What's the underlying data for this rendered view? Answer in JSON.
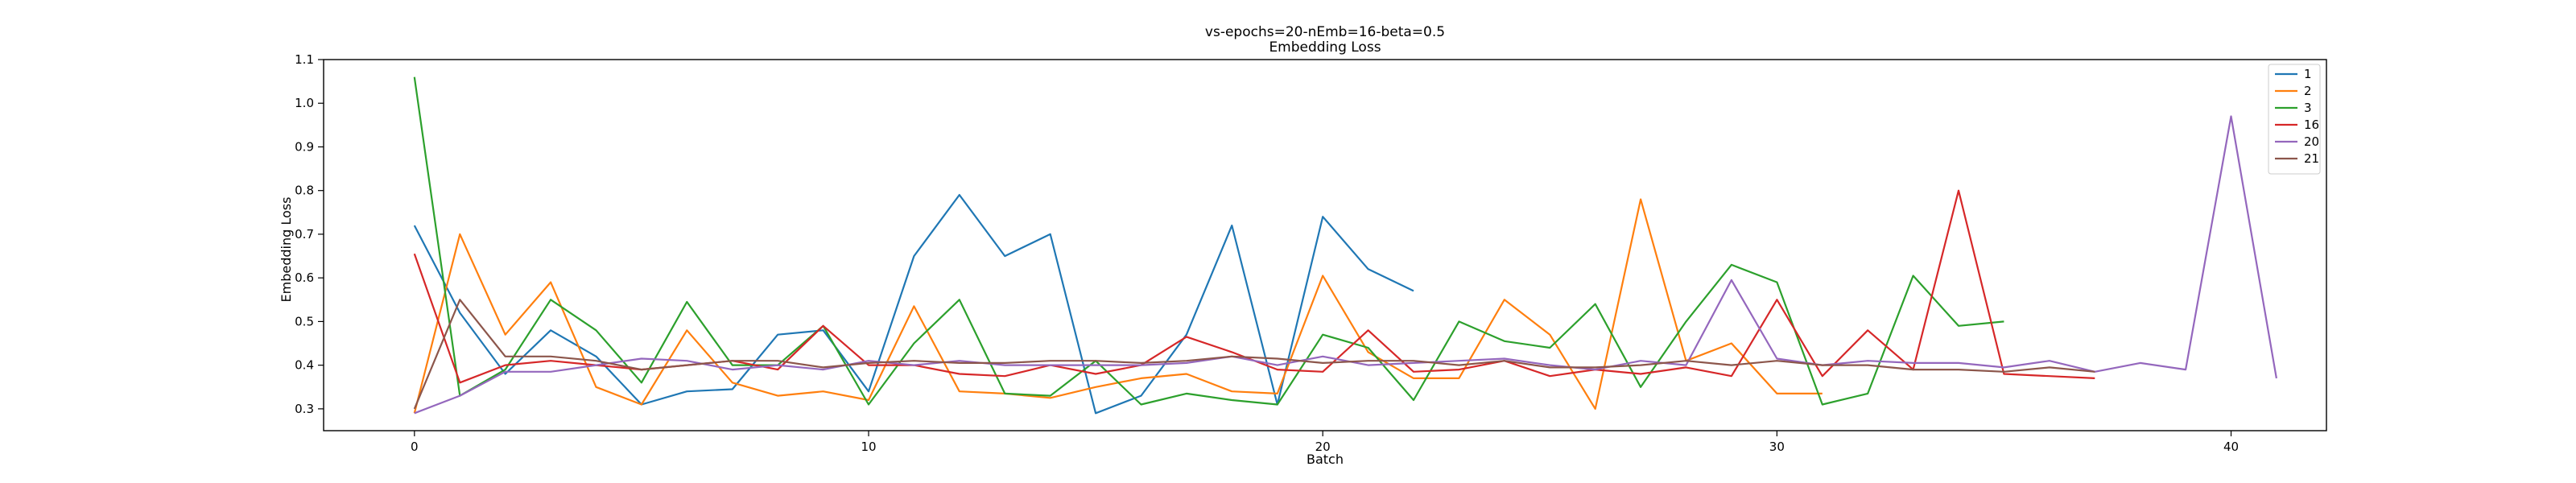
{
  "chart_data": {
    "type": "line",
    "title": "vs-epochs=20-nEmb=16-beta=0.5",
    "subtitle": "Embedding Loss",
    "xlabel": "Batch",
    "ylabel": "Embedding Loss",
    "xlim": [
      -2,
      42.1
    ],
    "ylim": [
      0.25,
      1.1
    ],
    "xticks": [
      0,
      10,
      20,
      30,
      40
    ],
    "yticks": [
      0.3,
      0.4,
      0.5,
      0.6,
      0.7,
      0.8,
      0.9,
      1.0,
      1.1
    ],
    "ytick_labels": [
      "0.3",
      "0.4",
      "0.5",
      "0.6",
      "0.7",
      "0.8",
      "0.9",
      "1.0",
      "1.1"
    ],
    "grid": false,
    "legend_position": "top-right",
    "series": [
      {
        "name": "1",
        "color": "#1f77b4",
        "values": [
          0.72,
          0.52,
          0.38,
          0.48,
          0.42,
          0.31,
          0.34,
          0.345,
          0.47,
          0.48,
          0.34,
          0.65,
          0.79,
          0.65,
          0.7,
          0.29,
          0.33,
          0.47,
          0.72,
          0.31,
          0.74,
          0.62,
          0.57
        ]
      },
      {
        "name": "2",
        "color": "#ff7f0e",
        "values": [
          0.29,
          0.7,
          0.47,
          0.59,
          0.35,
          0.31,
          0.48,
          0.36,
          0.33,
          0.34,
          0.32,
          0.535,
          0.34,
          0.335,
          0.325,
          0.35,
          0.37,
          0.38,
          0.34,
          0.335,
          0.605,
          0.43,
          0.37,
          0.37,
          0.55,
          0.47,
          0.3,
          0.78,
          0.41,
          0.45,
          0.335,
          0.335
        ]
      },
      {
        "name": "3",
        "color": "#2ca02c",
        "values": [
          1.06,
          0.33,
          0.39,
          0.55,
          0.48,
          0.36,
          0.545,
          0.4,
          0.4,
          0.49,
          0.31,
          0.45,
          0.55,
          0.335,
          0.33,
          0.41,
          0.31,
          0.335,
          0.32,
          0.31,
          0.47,
          0.44,
          0.32,
          0.5,
          0.455,
          0.44,
          0.54,
          0.35,
          0.5,
          0.63,
          0.59,
          0.31,
          0.335,
          0.605,
          0.49,
          0.5
        ]
      },
      {
        "name": "16",
        "color": "#d62728",
        "values": [
          0.655,
          0.36,
          0.4,
          0.41,
          0.4,
          0.39,
          0.4,
          0.41,
          0.39,
          0.49,
          0.4,
          0.4,
          0.38,
          0.375,
          0.4,
          0.38,
          0.4,
          0.465,
          0.43,
          0.39,
          0.385,
          0.48,
          0.385,
          0.39,
          0.41,
          0.375,
          0.39,
          0.38,
          0.395,
          0.375,
          0.55,
          0.375,
          0.48,
          0.39,
          0.8,
          0.38,
          0.375,
          0.37
        ]
      },
      {
        "name": "20",
        "color": "#9467bd",
        "values": [
          0.29,
          0.33,
          0.385,
          0.385,
          0.4,
          0.415,
          0.41,
          0.39,
          0.4,
          0.39,
          0.41,
          0.4,
          0.41,
          0.4,
          0.4,
          0.4,
          0.4,
          0.405,
          0.42,
          0.4,
          0.42,
          0.4,
          0.405,
          0.41,
          0.415,
          0.4,
          0.39,
          0.41,
          0.4,
          0.595,
          0.415,
          0.4,
          0.41,
          0.405,
          0.405,
          0.395,
          0.41,
          0.385,
          0.405,
          0.39,
          0.97,
          0.37
        ]
      },
      {
        "name": "21",
        "color": "#8c564b",
        "values": [
          0.3,
          0.55,
          0.42,
          0.42,
          0.41,
          0.39,
          0.4,
          0.41,
          0.41,
          0.395,
          0.405,
          0.41,
          0.405,
          0.405,
          0.41,
          0.41,
          0.405,
          0.41,
          0.42,
          0.415,
          0.405,
          0.41,
          0.41,
          0.4,
          0.41,
          0.395,
          0.395,
          0.4,
          0.41,
          0.4,
          0.41,
          0.4,
          0.4,
          0.39,
          0.39,
          0.385,
          0.395,
          0.385
        ]
      }
    ]
  }
}
